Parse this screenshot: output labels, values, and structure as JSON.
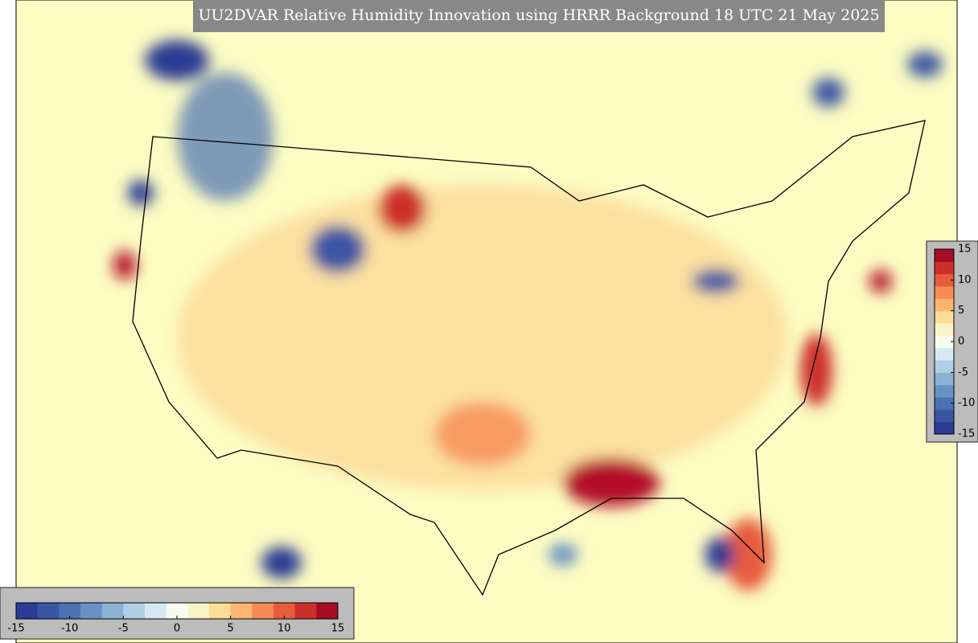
{
  "title": "UU2DVAR Relative Humidity Innovation using HRRR Background 18 UTC 21 May 2025",
  "colorbars": [
    {
      "orientation": "horizontal",
      "lim": [
        -15,
        15
      ],
      "ticks": [
        -15,
        -10,
        -5,
        0,
        5,
        10,
        15
      ]
    },
    {
      "orientation": "vertical",
      "lim": [
        -15,
        15
      ],
      "ticks": [
        -15,
        -10,
        -5,
        0,
        5,
        10,
        15
      ]
    }
  ],
  "colors": [
    "#2c3b93",
    "#3a56a3",
    "#4a71b2",
    "#6892c4",
    "#8bb1d4",
    "#b0cfe4",
    "#d6e9f1",
    "#f7fbf0",
    "#fbf3c8",
    "#fddc96",
    "#fcb56f",
    "#f68b55",
    "#e65c3d",
    "#cc2f2a",
    "#a50d24"
  ]
}
